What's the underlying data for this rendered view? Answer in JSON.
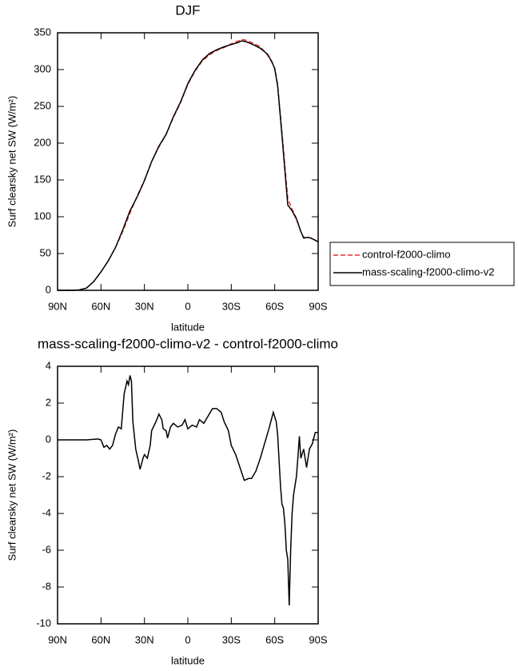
{
  "chart_data": [
    {
      "type": "line",
      "title": "DJF",
      "xlabel": "latitude",
      "ylabel": "Surf clearsky net SW (W/m²)",
      "xlim": [
        90,
        -90
      ],
      "ylim": [
        0,
        350
      ],
      "xticks": [
        {
          "value": 90,
          "label": "90N"
        },
        {
          "value": 60,
          "label": "60N"
        },
        {
          "value": 30,
          "label": "30N"
        },
        0,
        {
          "value": -30,
          "label": "30S"
        },
        {
          "value": -60,
          "label": "60S"
        },
        {
          "value": -90,
          "label": "90S"
        }
      ],
      "yticks": [
        0,
        50,
        100,
        150,
        200,
        250,
        300,
        350
      ],
      "legend": "outside-right",
      "x": [
        90,
        85,
        80,
        75,
        70,
        65,
        60,
        55,
        50,
        45,
        40,
        35,
        30,
        25,
        20,
        15,
        10,
        5,
        0,
        -5,
        -10,
        -15,
        -20,
        -25,
        -30,
        -35,
        -37,
        -40,
        -45,
        -50,
        -55,
        -58,
        -60,
        -62,
        -65,
        -67,
        -69,
        -72,
        -75,
        -78,
        -80,
        -83,
        -85,
        -88,
        -90
      ],
      "series": [
        {
          "name": "control-f2000-climo",
          "color": "#e8302a",
          "dash": true,
          "values": [
            0,
            0,
            0,
            0.5,
            3,
            12,
            25,
            40,
            58,
            80,
            105,
            128,
            150,
            175,
            195,
            212,
            235,
            255,
            280,
            298,
            312,
            320,
            326,
            330,
            335,
            339,
            341,
            340,
            336,
            331,
            320,
            310,
            302,
            280,
            215,
            170,
            125,
            110,
            98,
            80,
            72,
            72,
            71,
            68,
            66
          ]
        },
        {
          "name": "mass-scaling-f2000-climo-v2",
          "color": "#000000",
          "dash": false,
          "values": [
            0,
            0,
            0,
            0.5,
            3,
            12,
            25,
            40,
            58,
            82,
            108,
            127,
            149,
            175,
            196,
            212,
            236,
            256,
            281,
            299,
            313,
            322,
            327,
            331,
            334,
            337,
            339,
            338,
            334,
            329,
            321,
            311,
            301,
            278,
            211,
            164,
            116,
            108,
            97,
            80,
            71,
            72,
            71,
            68,
            66
          ]
        }
      ]
    },
    {
      "type": "line",
      "title": "mass-scaling-f2000-climo-v2 - control-f2000-climo",
      "xlabel": "latitude",
      "ylabel": "Surf clearsky net SW (W/m²)",
      "xlim": [
        90,
        -90
      ],
      "ylim": [
        -10,
        4
      ],
      "xticks": [
        {
          "value": 90,
          "label": "90N"
        },
        {
          "value": 60,
          "label": "60N"
        },
        {
          "value": 30,
          "label": "30N"
        },
        0,
        {
          "value": -30,
          "label": "30S"
        },
        {
          "value": -60,
          "label": "60S"
        },
        {
          "value": -90,
          "label": "90S"
        }
      ],
      "yticks": [
        -10,
        -8,
        -6,
        -4,
        -2,
        0,
        2,
        4
      ],
      "color": "#000000",
      "x": [
        90,
        80,
        70,
        62,
        60,
        58,
        56,
        54,
        52,
        50,
        48,
        46,
        44,
        42,
        41,
        40,
        39,
        38,
        36,
        34,
        33,
        31,
        30,
        28,
        26,
        25,
        22,
        20,
        18,
        17,
        15,
        14,
        12,
        10,
        7,
        4,
        2,
        0,
        -3,
        -6,
        -8,
        -11,
        -14,
        -17,
        -20,
        -23,
        -25,
        -28,
        -30,
        -33,
        -36,
        -39,
        -42,
        -44,
        -47,
        -50,
        -53,
        -56,
        -59,
        -61,
        -62,
        -64,
        -65,
        -66,
        -67,
        -68,
        -69,
        -70,
        -71,
        -72,
        -73,
        -75,
        -76,
        -77,
        -78,
        -80,
        -82,
        -84,
        -86,
        -88,
        -90
      ],
      "values": [
        0,
        0,
        0,
        0.05,
        0,
        -0.4,
        -0.3,
        -0.5,
        -0.3,
        0.3,
        0.7,
        0.6,
        2.5,
        3.2,
        3.0,
        3.5,
        3.2,
        1.0,
        -0.5,
        -1.2,
        -1.6,
        -1.0,
        -0.8,
        -1.0,
        -0.3,
        0.5,
        1.0,
        1.4,
        1.1,
        0.6,
        0.5,
        0.1,
        0.7,
        0.9,
        0.7,
        0.8,
        1.1,
        0.6,
        0.8,
        0.7,
        1.1,
        0.9,
        1.3,
        1.7,
        1.7,
        1.5,
        1.0,
        0.5,
        -0.3,
        -0.8,
        -1.5,
        -2.2,
        -2.1,
        -2.1,
        -1.7,
        -1.0,
        -0.2,
        0.6,
        1.5,
        1.0,
        0.3,
        -2.5,
        -3.5,
        -3.7,
        -4.5,
        -6.0,
        -6.5,
        -9.0,
        -6.0,
        -4.0,
        -3.0,
        -2.0,
        -1.0,
        0.2,
        -1.0,
        -0.5,
        -1.5,
        -0.5,
        -0.2,
        0.4,
        0.4
      ]
    }
  ]
}
